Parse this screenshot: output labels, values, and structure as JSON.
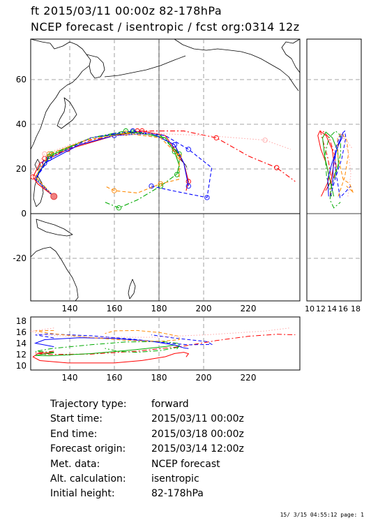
{
  "header": {
    "line1": "ft 2015/03/11 00:00z  82-178hPa",
    "line2": "NCEP forecast / isentropic / fcst org:0314 12z"
  },
  "map_panel": {
    "lon_ticks": [
      "140",
      "160",
      "180",
      "200",
      "220"
    ],
    "lat_ticks": [
      "60",
      "40",
      "20",
      "0",
      "-20"
    ],
    "lon_range": [
      124,
      240
    ],
    "lat_range": [
      -38,
      76
    ]
  },
  "side_panel": {
    "tick_labels": [
      "10",
      "12",
      "14",
      "16",
      "18"
    ]
  },
  "bottom_panel": {
    "y_ticks": [
      "18",
      "16",
      "14",
      "12",
      "10"
    ],
    "x_ticks": [
      "140",
      "160",
      "180",
      "200",
      "220"
    ]
  },
  "chart_data": {
    "type": "scatter",
    "title": "ft 2015/03/11 00:00z  82-178hPa",
    "source_point": {
      "lon": 134,
      "lat": 7.5
    },
    "series": [
      {
        "color": "#ff0000",
        "style": "solid",
        "points": [
          [
            134,
            7.5
          ],
          [
            127,
            13
          ],
          [
            125,
            16
          ],
          [
            128,
            22
          ],
          [
            140,
            28
          ],
          [
            160,
            34
          ],
          [
            172,
            36
          ],
          [
            182,
            34
          ],
          [
            186,
            28
          ],
          [
            190,
            22
          ],
          [
            192,
            14
          ],
          [
            191,
            10
          ]
        ]
      },
      {
        "color": "#ff0000",
        "style": "dashdot",
        "points": [
          [
            134,
            7.5
          ],
          [
            126,
            15
          ],
          [
            130,
            24
          ],
          [
            150,
            32
          ],
          [
            170,
            36
          ],
          [
            190,
            36
          ],
          [
            204,
            33
          ],
          [
            218,
            25
          ],
          [
            230,
            20
          ],
          [
            238,
            14
          ]
        ]
      },
      {
        "color": "#00aa00",
        "style": "solid",
        "points": [
          [
            134,
            7.5
          ],
          [
            126,
            15
          ],
          [
            132,
            25
          ],
          [
            150,
            33
          ],
          [
            168,
            35.5
          ],
          [
            182,
            33
          ],
          [
            186,
            27
          ],
          [
            188,
            21
          ],
          [
            187,
            17
          ]
        ]
      },
      {
        "color": "#00aa00",
        "style": "dashdot",
        "points": [
          [
            134,
            7.5
          ],
          [
            126,
            16
          ],
          [
            133,
            26
          ],
          [
            150,
            33
          ],
          [
            165,
            36
          ],
          [
            180,
            34
          ],
          [
            188,
            26
          ],
          [
            188,
            18
          ],
          [
            180,
            12
          ],
          [
            170,
            6
          ],
          [
            162,
            2.5
          ],
          [
            156,
            5
          ]
        ]
      },
      {
        "color": "#0000ff",
        "style": "solid",
        "points": [
          [
            134,
            7.5
          ],
          [
            126,
            15
          ],
          [
            130,
            22
          ],
          [
            145,
            30
          ],
          [
            160,
            34
          ],
          [
            176,
            35
          ],
          [
            186,
            30
          ],
          [
            190,
            22
          ],
          [
            192,
            12
          ]
        ]
      },
      {
        "color": "#0000ff",
        "style": "dashed",
        "points": [
          [
            134,
            7.5
          ],
          [
            126,
            15
          ],
          [
            132,
            24
          ],
          [
            150,
            33
          ],
          [
            168,
            36
          ],
          [
            182,
            34
          ],
          [
            192,
            28
          ],
          [
            202,
            20
          ],
          [
            200,
            7
          ],
          [
            185,
            10
          ],
          [
            176,
            12
          ]
        ]
      },
      {
        "color": "#ff8800",
        "style": "dashed",
        "points": [
          [
            134,
            7.5
          ],
          [
            126,
            16
          ],
          [
            132,
            26
          ],
          [
            148,
            32
          ],
          [
            165,
            35
          ],
          [
            180,
            33
          ],
          [
            188,
            25
          ],
          [
            188,
            15
          ],
          [
            180,
            13
          ],
          [
            170,
            9
          ],
          [
            160,
            10
          ],
          [
            156,
            12
          ]
        ]
      },
      {
        "color": "#ffaaaa",
        "style": "dotted",
        "points": [
          [
            134,
            7.5
          ],
          [
            124,
            17
          ],
          [
            130,
            26
          ],
          [
            150,
            33
          ],
          [
            175,
            35
          ],
          [
            200,
            34
          ],
          [
            225,
            32
          ],
          [
            236,
            28
          ]
        ]
      }
    ]
  }
}
